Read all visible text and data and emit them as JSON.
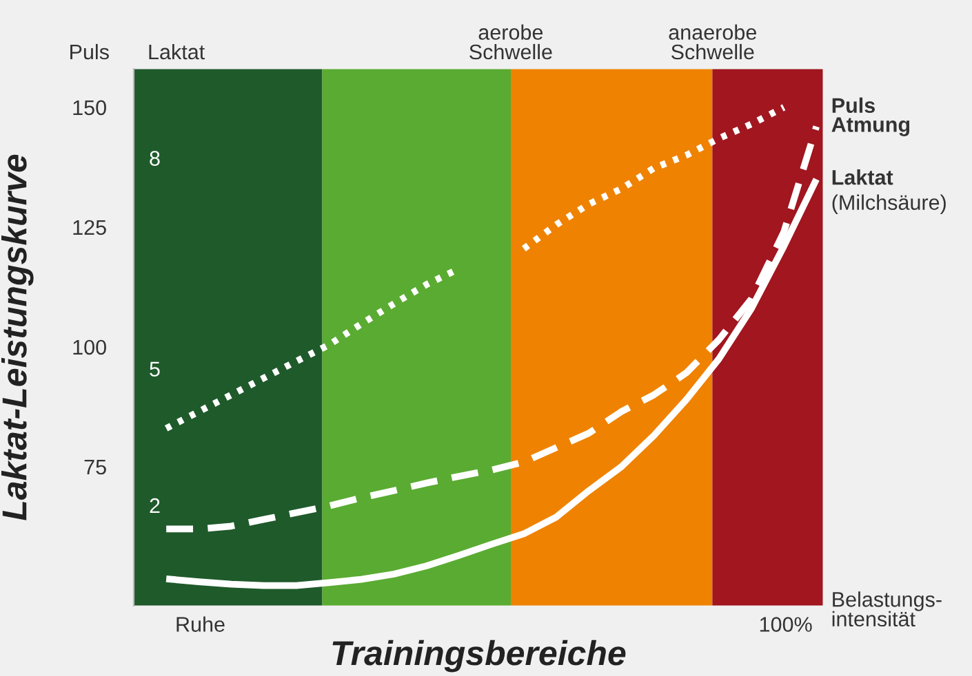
{
  "chart_data": {
    "type": "line",
    "ylabel": "Laktat-Leistungskurve",
    "xlabel": "Trainingsbereiche",
    "categories": [
      null,
      null,
      null,
      null,
      null,
      null,
      null,
      null,
      null,
      null,
      null,
      null,
      null,
      null,
      null,
      null,
      null,
      null,
      null,
      null,
      null
    ],
    "ylim": [
      46,
      158
    ],
    "yticks": [
      75,
      100,
      125,
      150
    ],
    "tick_labels": "y",
    "grid": false,
    "legend": false,
    "series": [
      {
        "name": "Puls",
        "color": "#ffffff",
        "line_style": "dotted",
        "values": [
          83,
          86.5,
          90,
          93.5,
          97,
          100.4,
          104.8,
          109,
          113,
          116.3,
          null,
          120.5,
          125.5,
          129.8,
          133,
          137.3,
          140,
          143.5,
          146.5,
          150,
          null
        ]
      },
      {
        "name": "Atmung",
        "color": "#ffffff",
        "line_style": "dashed",
        "values": [
          62,
          62,
          62.6,
          64,
          65.4,
          66.8,
          68.5,
          70,
          71.6,
          73,
          74.3,
          76,
          79,
          82,
          86.5,
          90,
          94.6,
          101.5,
          110,
          124,
          146
        ]
      },
      {
        "name": "Laktat\n(Milchsäure)",
        "color": "#ffffff",
        "line_style": "solid",
        "values": [
          51.6,
          51,
          50.5,
          50.2,
          50.2,
          50.8,
          51.5,
          52.6,
          54.3,
          56.5,
          58.8,
          61,
          64.5,
          70,
          75,
          81.5,
          89,
          97.5,
          108,
          121,
          135
        ]
      }
    ],
    "annotations": [
      "Puls",
      "Laktat",
      "8",
      "5",
      "2",
      "Ruhe",
      "100%",
      "Belastungs-\nintensität",
      "aerobe\nSchwelle",
      "anaerobe\nSchwelle"
    ]
  }
}
